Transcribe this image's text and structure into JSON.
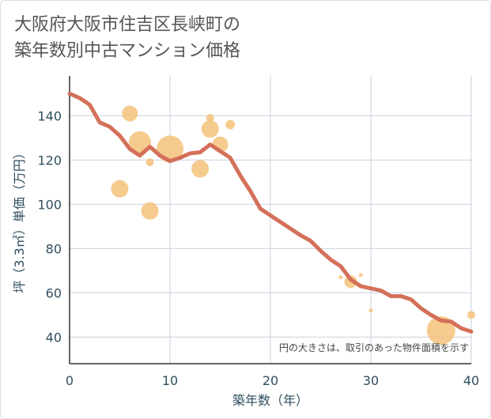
{
  "title_lines": [
    "大阪府大阪市住吉区長峡町の",
    "築年数別中古マンション価格"
  ],
  "chart_data": {
    "type": "scatter",
    "title": "大阪府大阪市住吉区長峡町の築年数別中古マンション価格",
    "xlabel": "築年数（年）",
    "ylabel": "坪（3.3㎡）単価（万円）",
    "xlim": [
      0,
      40
    ],
    "ylim": [
      28,
      158
    ],
    "xticks": [
      0,
      10,
      20,
      30,
      40
    ],
    "yticks": [
      40,
      60,
      80,
      100,
      120,
      140
    ],
    "grid": true,
    "annotation": "円の大きさは、取引のあった物件面積を示す",
    "colors": {
      "bubble": "#f5c27a",
      "line": "#d4705a",
      "grid": "#c8d2dc",
      "axis": "#333333"
    },
    "bubbles": [
      {
        "x": 6,
        "y": 141,
        "size": 10
      },
      {
        "x": 7,
        "y": 128,
        "size": 14
      },
      {
        "x": 8,
        "y": 119,
        "size": 5
      },
      {
        "x": 10,
        "y": 125,
        "size": 17
      },
      {
        "x": 5,
        "y": 107,
        "size": 11
      },
      {
        "x": 8,
        "y": 97,
        "size": 11
      },
      {
        "x": 13,
        "y": 116,
        "size": 11
      },
      {
        "x": 14,
        "y": 134,
        "size": 11
      },
      {
        "x": 14,
        "y": 139,
        "size": 5
      },
      {
        "x": 15,
        "y": 127,
        "size": 10
      },
      {
        "x": 16,
        "y": 136,
        "size": 6
      },
      {
        "x": 27,
        "y": 67,
        "size": 2.5
      },
      {
        "x": 28,
        "y": 65,
        "size": 8
      },
      {
        "x": 29,
        "y": 68,
        "size": 2.5
      },
      {
        "x": 30,
        "y": 52,
        "size": 2.5
      },
      {
        "x": 37,
        "y": 43,
        "size": 18
      },
      {
        "x": 40,
        "y": 50,
        "size": 5
      }
    ],
    "line": {
      "x": [
        0,
        1,
        2,
        3,
        4,
        5,
        6,
        7,
        8,
        9,
        10,
        11,
        12,
        13,
        14,
        15,
        16,
        17,
        18,
        19,
        20,
        21,
        22,
        23,
        24,
        25,
        26,
        27,
        28,
        29,
        30,
        31,
        32,
        33,
        34,
        35,
        36,
        37,
        38,
        39,
        40
      ],
      "y": [
        150,
        148,
        145,
        137,
        135,
        131,
        125,
        122,
        126,
        122,
        119.5,
        121,
        123,
        123.5,
        127,
        124,
        121,
        113,
        106,
        98,
        95,
        92,
        89,
        86,
        83.5,
        79,
        75,
        72,
        66,
        63,
        62,
        61,
        58.5,
        58.5,
        57,
        53,
        50,
        47.5,
        47,
        44,
        42.5
      ]
    }
  }
}
